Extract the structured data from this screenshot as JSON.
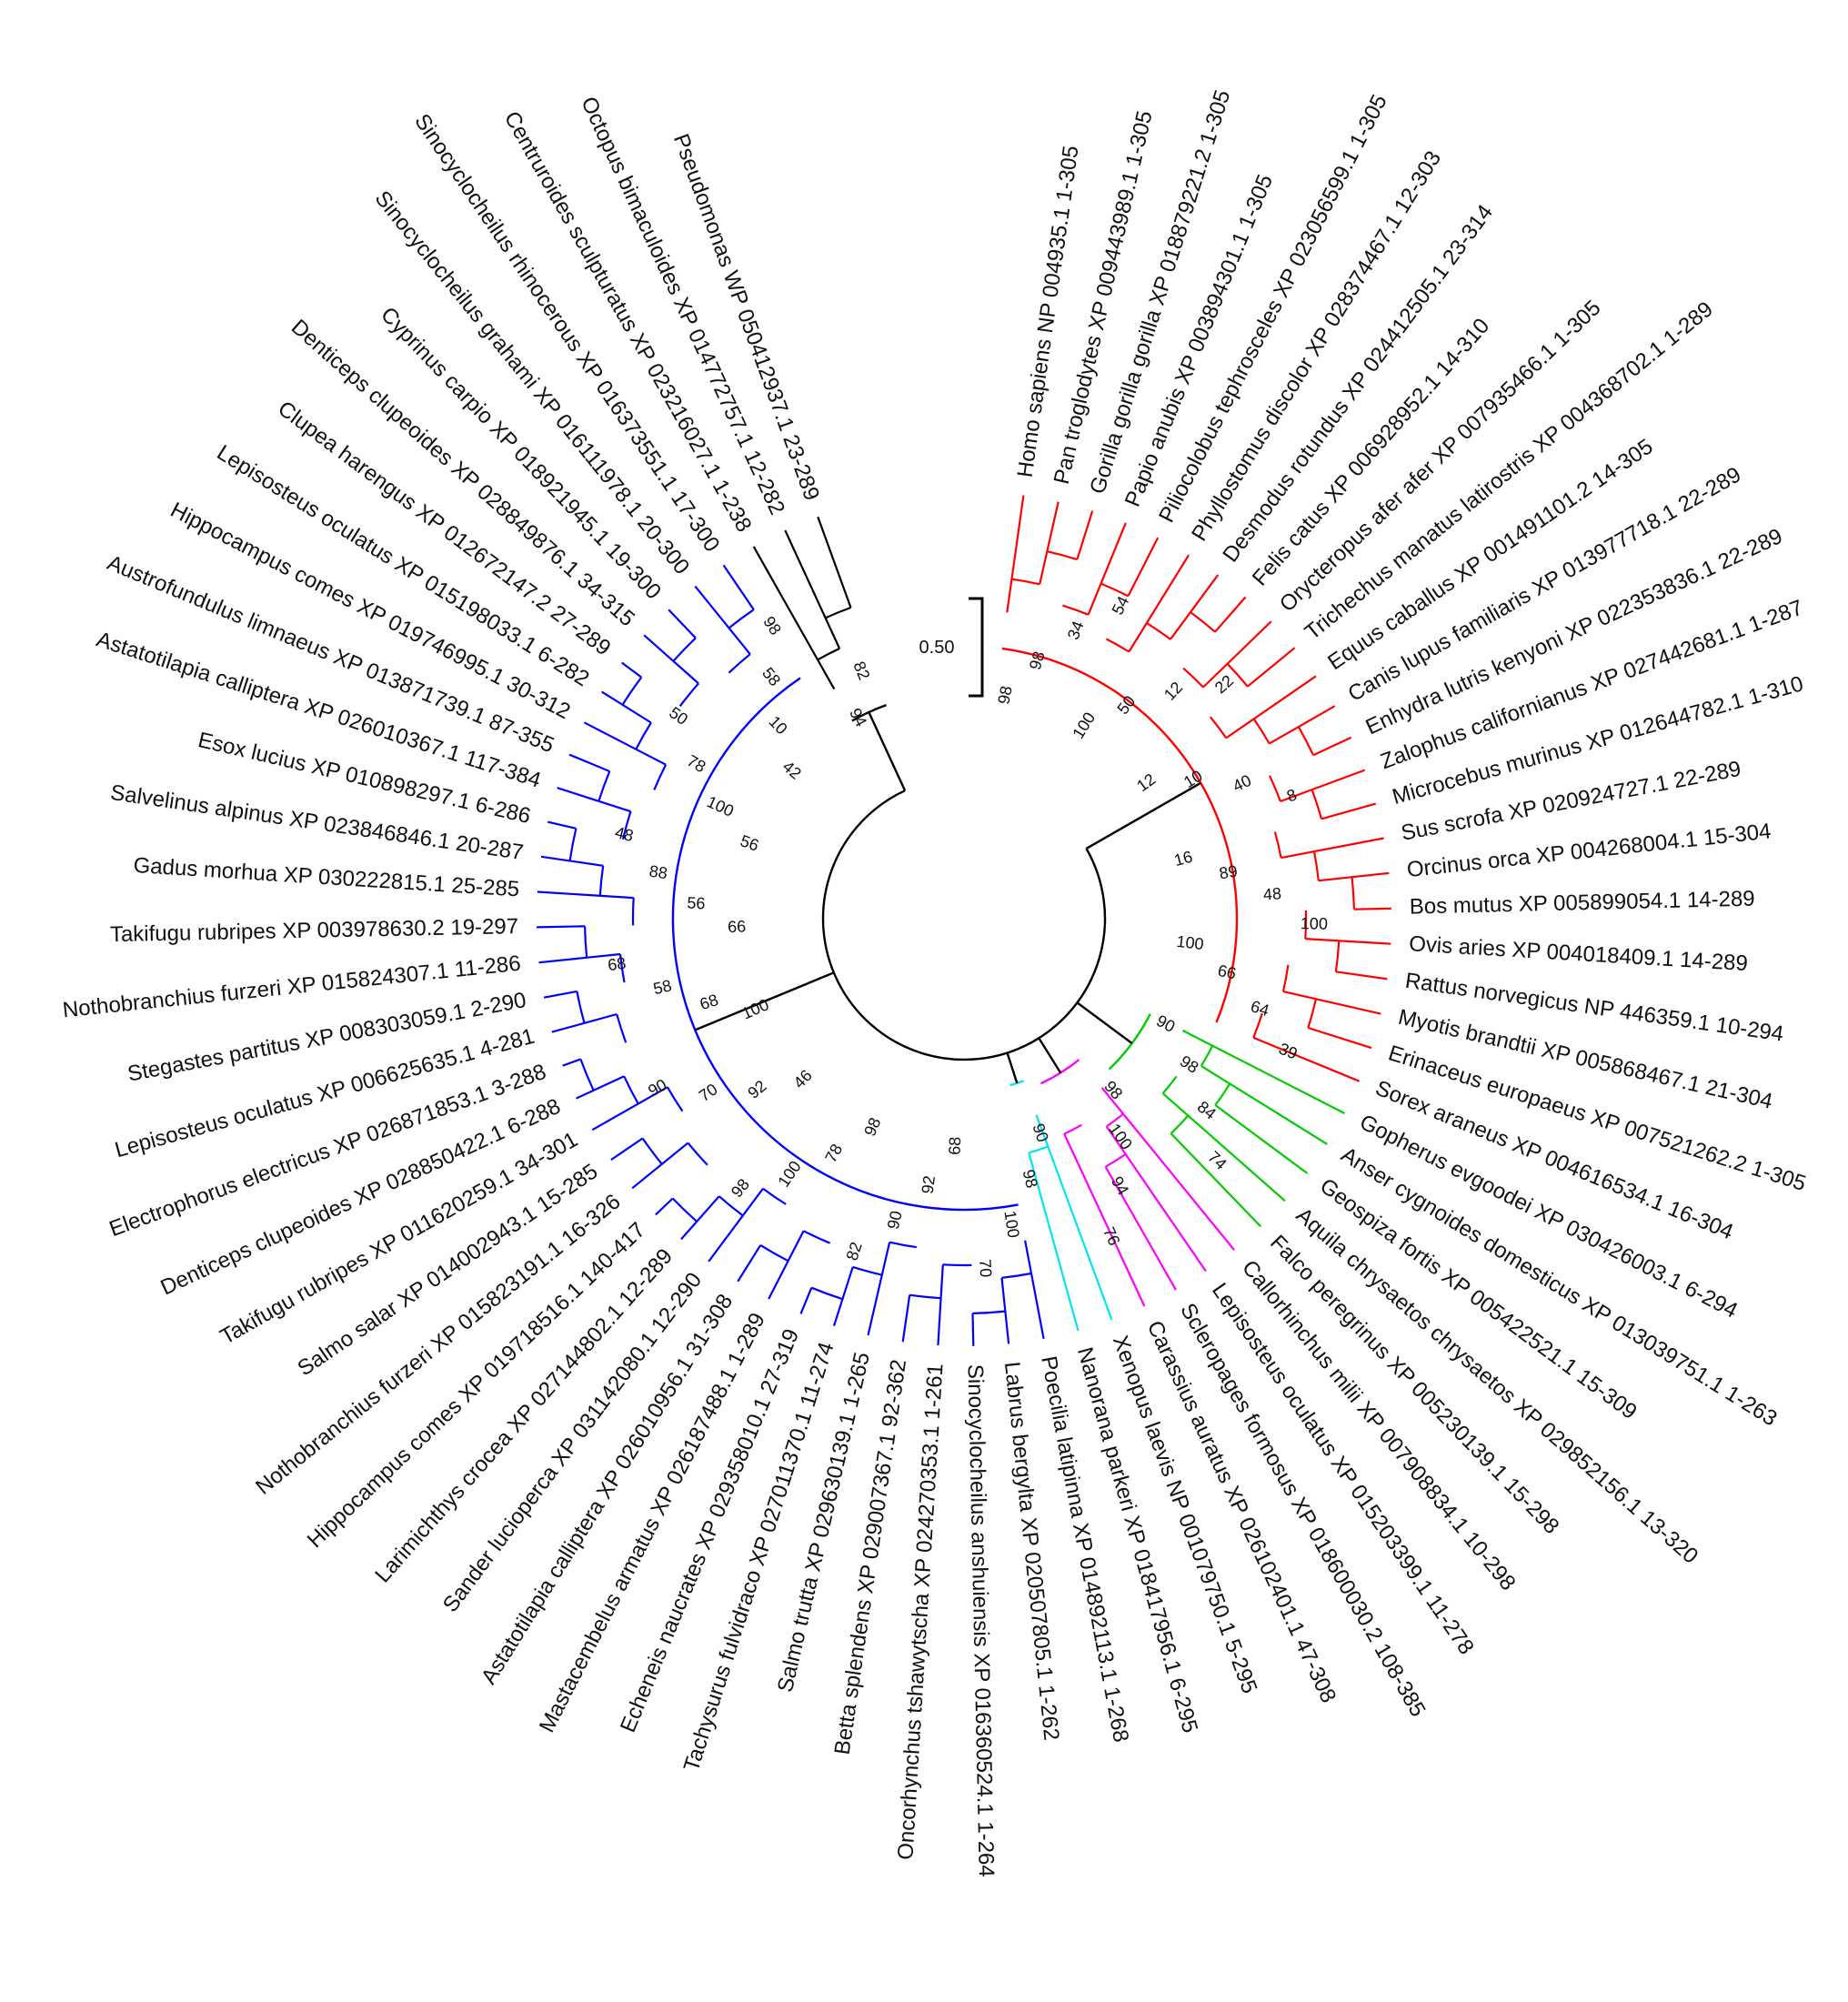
{
  "scale_bar": {
    "label": "0.50"
  },
  "colors": {
    "mammals": "#ff0000",
    "birds_reptiles": "#00cc00",
    "fish_misc": "#ff00ff",
    "amphibians": "#00e5ee",
    "fish": "#0000ff",
    "outgroup": "#000000"
  },
  "clades": [
    {
      "name": "mammals",
      "color": "#ff0000",
      "leaves": [
        "Homo sapiens NP 004935.1 1-305",
        "Pan troglodytes XP 009443989.1 1-305",
        "Gorilla gorilla gorilla XP 018879221.2 1-305",
        "Papio anubis XP 003894301.1 1-305",
        "Piliocolobus tephrosceles XP 023056599.1 1-305",
        "Phyllostomus discolor XP 028374467.1 12-303",
        "Desmodus rotundus XP 024412505.1 23-314",
        "Felis catus XP 006928952.1 14-310",
        "Orycteropus afer afer XP 007935466.1 1-305",
        "Trichechus manatus latirostris XP 004368702.1 1-289",
        "Equus caballus XP 001491101.2 14-305",
        "Canis lupus familiaris XP 013977718.1 22-289",
        "Enhydra lutris kenyoni XP 022353836.1 22-289",
        "Zalophus californianus XP 027442681.1 1-287",
        "Microcebus murinus XP 012644782.1 1-310",
        "Sus scrofa XP 020924727.1 22-289",
        "Orcinus orca XP 004268004.1 15-304",
        "Bos mutus XP 005899054.1 14-289",
        "Ovis aries XP 004018409.1 14-289",
        "Rattus norvegicus NP 446359.1 10-294",
        "Myotis brandtii XP 005868467.1 21-304",
        "Erinaceus europaeus XP 007521262.2 1-305",
        "Sorex araneus XP 004616534.1 16-304"
      ]
    },
    {
      "name": "birds_reptiles",
      "color": "#00cc00",
      "leaves": [
        "Gopherus evgoodei XP 030426003.1 6-294",
        "Anser cygnoides domesticus XP 013039751.1 1-263",
        "Geospiza fortis XP 005422521.1 15-309",
        "Aquila chrysaetos chrysaetos XP 029852156.1 13-320",
        "Falco peregrinus XP 005230139.1 15-298"
      ]
    },
    {
      "name": "fish_misc",
      "color": "#ff00ff",
      "leaves": [
        "Callorhinchus milii XP 007908834.1 10-298",
        "Lepisosteus oculatus XP 015203399.1 11-278",
        "Scleropages formosus XP 018600030.2 108-385",
        "Carassius auratus XP 026102401.1 47-308"
      ]
    },
    {
      "name": "amphibians",
      "color": "#00e5ee",
      "leaves": [
        "Xenopus laevis NP 001079750.1 5-295",
        "Nanorana parkeri XP 018417956.1 6-295"
      ]
    },
    {
      "name": "fish",
      "color": "#0000ff",
      "leaves": [
        "Poecilia latipinna XP 014892113.1 1-268",
        "Labrus bergylta XP 020507805.1 1-262",
        "Sinocyclocheilus anshuiensis XP 016360524.1 1-264",
        "Oncorhynchus tshawytscha XP 024270353.1 1-261",
        "Betta splendens XP 029007367.1 92-362",
        "Salmo trutta XP 029630139.1 1-265",
        "Tachysurus fulvidraco XP 027011370.1 11-274",
        "Echeneis naucrates XP 029358010.1 27-319",
        "Mastacembelus armatus XP 026187488.1 1-289",
        "Astatotilapia calliptera XP 026010956.1 31-308",
        "Sander lucioperca XP 031142080.1 12-290",
        "Larimichthys crocea XP 027144802.1 12-289",
        "Hippocampus comes XP 019718516.1 140-417",
        "Nothobranchius furzeri XP 015823191.1 16-326",
        "Salmo salar XP 014002943.1 15-285",
        "Takifugu rubripes XP 011620259.1 34-301",
        "Denticeps clupeoides XP 028850422.1 6-288",
        "Electrophorus electricus XP 026871853.1 3-288",
        "Lepisosteus oculatus XP 006625635.1 4-281",
        "Stegastes partitus XP 008303059.1 2-290",
        "Nothobranchius furzeri XP 015824307.1 11-286",
        "Takifugu rubripes XP 003978630.2 19-297",
        "Gadus morhua XP 030222815.1 25-285",
        "Salvelinus alpinus XP 023846846.1 20-287",
        "Esox lucius XP 010898297.1 6-286",
        "Astatotilapia calliptera XP 026010367.1 117-384",
        "Austrofundulus limnaeus XP 013871739.1 87-355",
        "Hippocampus comes XP 019746995.1 30-312",
        "Lepisosteus oculatus XP 015198033.1 6-282",
        "Clupea harengus XP 012672147.2 27-289",
        "Denticeps clupeoides XP 028849876.1 34-315",
        "Cyprinus carpio XP 018921945.1 19-300",
        "Sinocyclocheilus grahami XP 016111978.1 20-300",
        "Sinocyclocheilus rhinocerous XP 016373551.1 17-300"
      ]
    },
    {
      "name": "outgroup",
      "color": "#000000",
      "leaves": [
        "Centruroides sculpturatus XP 023216027.1 1-238",
        "Octopus bimaculoides XP 014772757.1 12-282",
        "Pseudomonas WP 050412937.1 23-289"
      ]
    }
  ],
  "bootstrap_values": [
    "98",
    "98",
    "34",
    "54",
    "100",
    "50",
    "12",
    "22",
    "12",
    "10",
    "40",
    "8",
    "16",
    "89",
    "48",
    "100",
    "100",
    "66",
    "64",
    "39",
    "90",
    "98",
    "84",
    "74",
    "98",
    "100",
    "94",
    "76",
    "90",
    "98",
    "100",
    "70",
    "68",
    "92",
    "90",
    "82",
    "98",
    "78",
    "100",
    "98",
    "46",
    "92",
    "70",
    "90",
    "100",
    "68",
    "58",
    "68",
    "66",
    "56",
    "88",
    "48",
    "56",
    "100",
    "78",
    "50",
    "42",
    "10",
    "58",
    "98",
    "94",
    "82"
  ]
}
